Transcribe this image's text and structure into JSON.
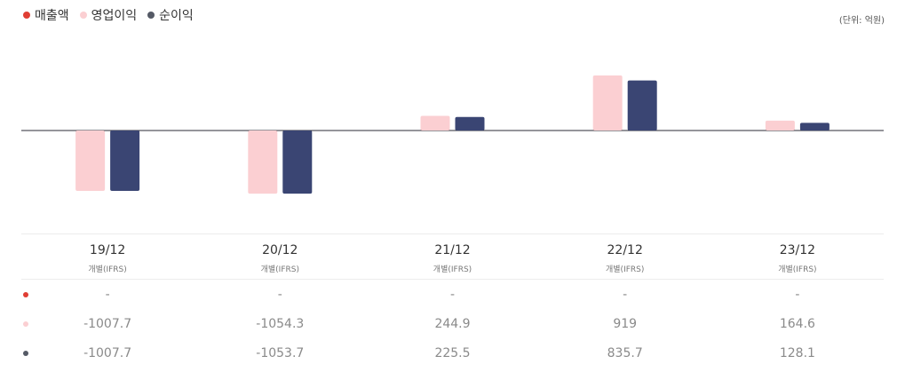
{
  "legend": [
    {
      "label": "매출액",
      "color": "#e03e34"
    },
    {
      "label": "영업이익",
      "color": "#fbcfd2"
    },
    {
      "label": "순이익",
      "color": "#555a66"
    }
  ],
  "unit_label": "(단위: 억원)",
  "chart_data": {
    "type": "bar",
    "categories": [
      "19/12",
      "20/12",
      "21/12",
      "22/12",
      "23/12"
    ],
    "series": [
      {
        "name": "매출액",
        "color": "#e03e34",
        "values": [
          null,
          null,
          null,
          null,
          null
        ]
      },
      {
        "name": "영업이익",
        "color": "#fbcfd2",
        "values": [
          -1007.7,
          -1054.3,
          244.9,
          919,
          164.6
        ]
      },
      {
        "name": "순이익",
        "color": "#3a4573",
        "values": [
          -1007.7,
          -1053.7,
          225.5,
          835.7,
          128.1
        ]
      }
    ],
    "ylim": [
      -1500,
      1500
    ],
    "grid": false,
    "legend_position": "top-left"
  },
  "table": {
    "columns": [
      {
        "period": "19/12",
        "basis": "개별(IFRS)"
      },
      {
        "period": "20/12",
        "basis": "개별(IFRS)"
      },
      {
        "period": "21/12",
        "basis": "개별(IFRS)"
      },
      {
        "period": "22/12",
        "basis": "개별(IFRS)"
      },
      {
        "period": "23/12",
        "basis": "개별(IFRS)"
      }
    ],
    "rows": [
      {
        "color": "#e03e34",
        "values": [
          "-",
          "-",
          "-",
          "-",
          "-"
        ]
      },
      {
        "color": "#fbcfd2",
        "values": [
          "-1007.7",
          "-1054.3",
          "244.9",
          "919",
          "164.6"
        ]
      },
      {
        "color": "#555a66",
        "values": [
          "-1007.7",
          "-1053.7",
          "225.5",
          "835.7",
          "128.1"
        ]
      }
    ]
  }
}
